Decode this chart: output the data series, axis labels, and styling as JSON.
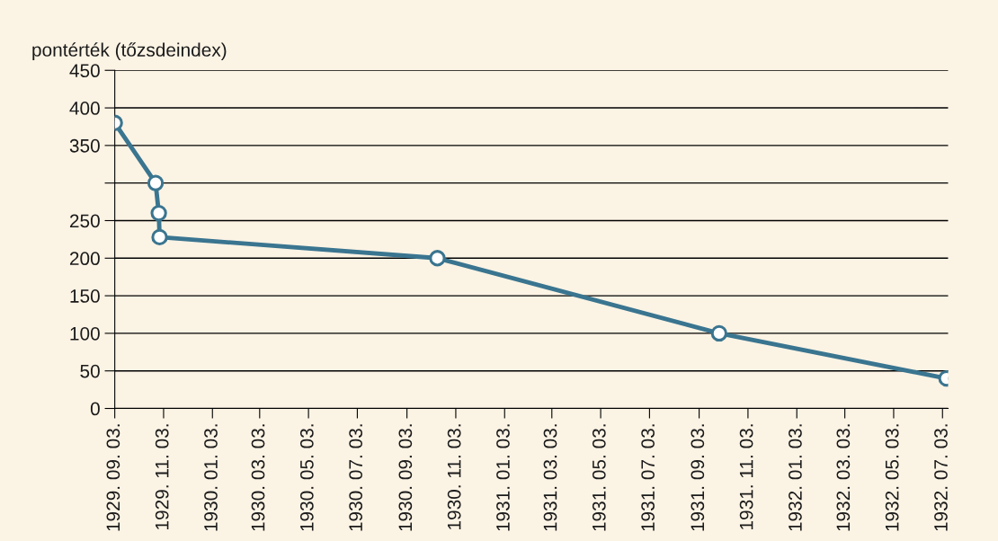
{
  "chart_data": {
    "type": "line",
    "ylabel": "pontérték (tőzsdeindex)",
    "x": [
      "1929-09-03",
      "1929-10-24",
      "1929-10-28",
      "1929-10-29",
      "1930-10-11",
      "1931-09-28",
      "1932-07-08"
    ],
    "series": [
      {
        "color": "#3a7590",
        "values": [
          380,
          300,
          260,
          228,
          200,
          100,
          40
        ]
      }
    ],
    "marker": "circle",
    "line_style": "solid",
    "grid": "y",
    "legend": false,
    "ylim": [
      0,
      450
    ],
    "yticks": [
      0,
      50,
      100,
      150,
      200,
      250,
      {
        "value": 300,
        "label": null
      },
      350,
      400,
      450
    ],
    "xlim": [
      "1929-09-03",
      "1932-07-10"
    ],
    "xticks": [
      {
        "value": "1929-09-03",
        "label": "1929. 09. 03."
      },
      {
        "value": "1929-11-03",
        "label": "1929. 11. 03."
      },
      {
        "value": "1930-01-03",
        "label": "1930. 01. 03."
      },
      {
        "value": "1930-03-03",
        "label": "1930. 03. 03."
      },
      {
        "value": "1930-05-03",
        "label": "1930. 05. 03."
      },
      {
        "value": "1930-07-03",
        "label": "1930. 07. 03."
      },
      {
        "value": "1930-09-03",
        "label": "1930. 09. 03."
      },
      {
        "value": "1930-11-03",
        "label": "1930. 11. 03."
      },
      {
        "value": "1931-01-03",
        "label": "1931. 01. 03."
      },
      {
        "value": "1931-03-03",
        "label": "1931. 03. 03."
      },
      {
        "value": "1931-05-03",
        "label": "1931. 05. 03."
      },
      {
        "value": "1931-07-03",
        "label": "1931. 07. 03."
      },
      {
        "value": "1931-09-03",
        "label": "1931. 09. 03."
      },
      {
        "value": "1931-11-03",
        "label": "1931. 11. 03."
      },
      {
        "value": "1932-01-03",
        "label": "1932. 01. 03."
      },
      {
        "value": "1932-03-03",
        "label": "1932. 03. 03."
      },
      {
        "value": "1932-05-03",
        "label": "1932. 05. 03."
      },
      {
        "value": "1932-07-03",
        "label": "1932. 07. 03."
      }
    ]
  }
}
